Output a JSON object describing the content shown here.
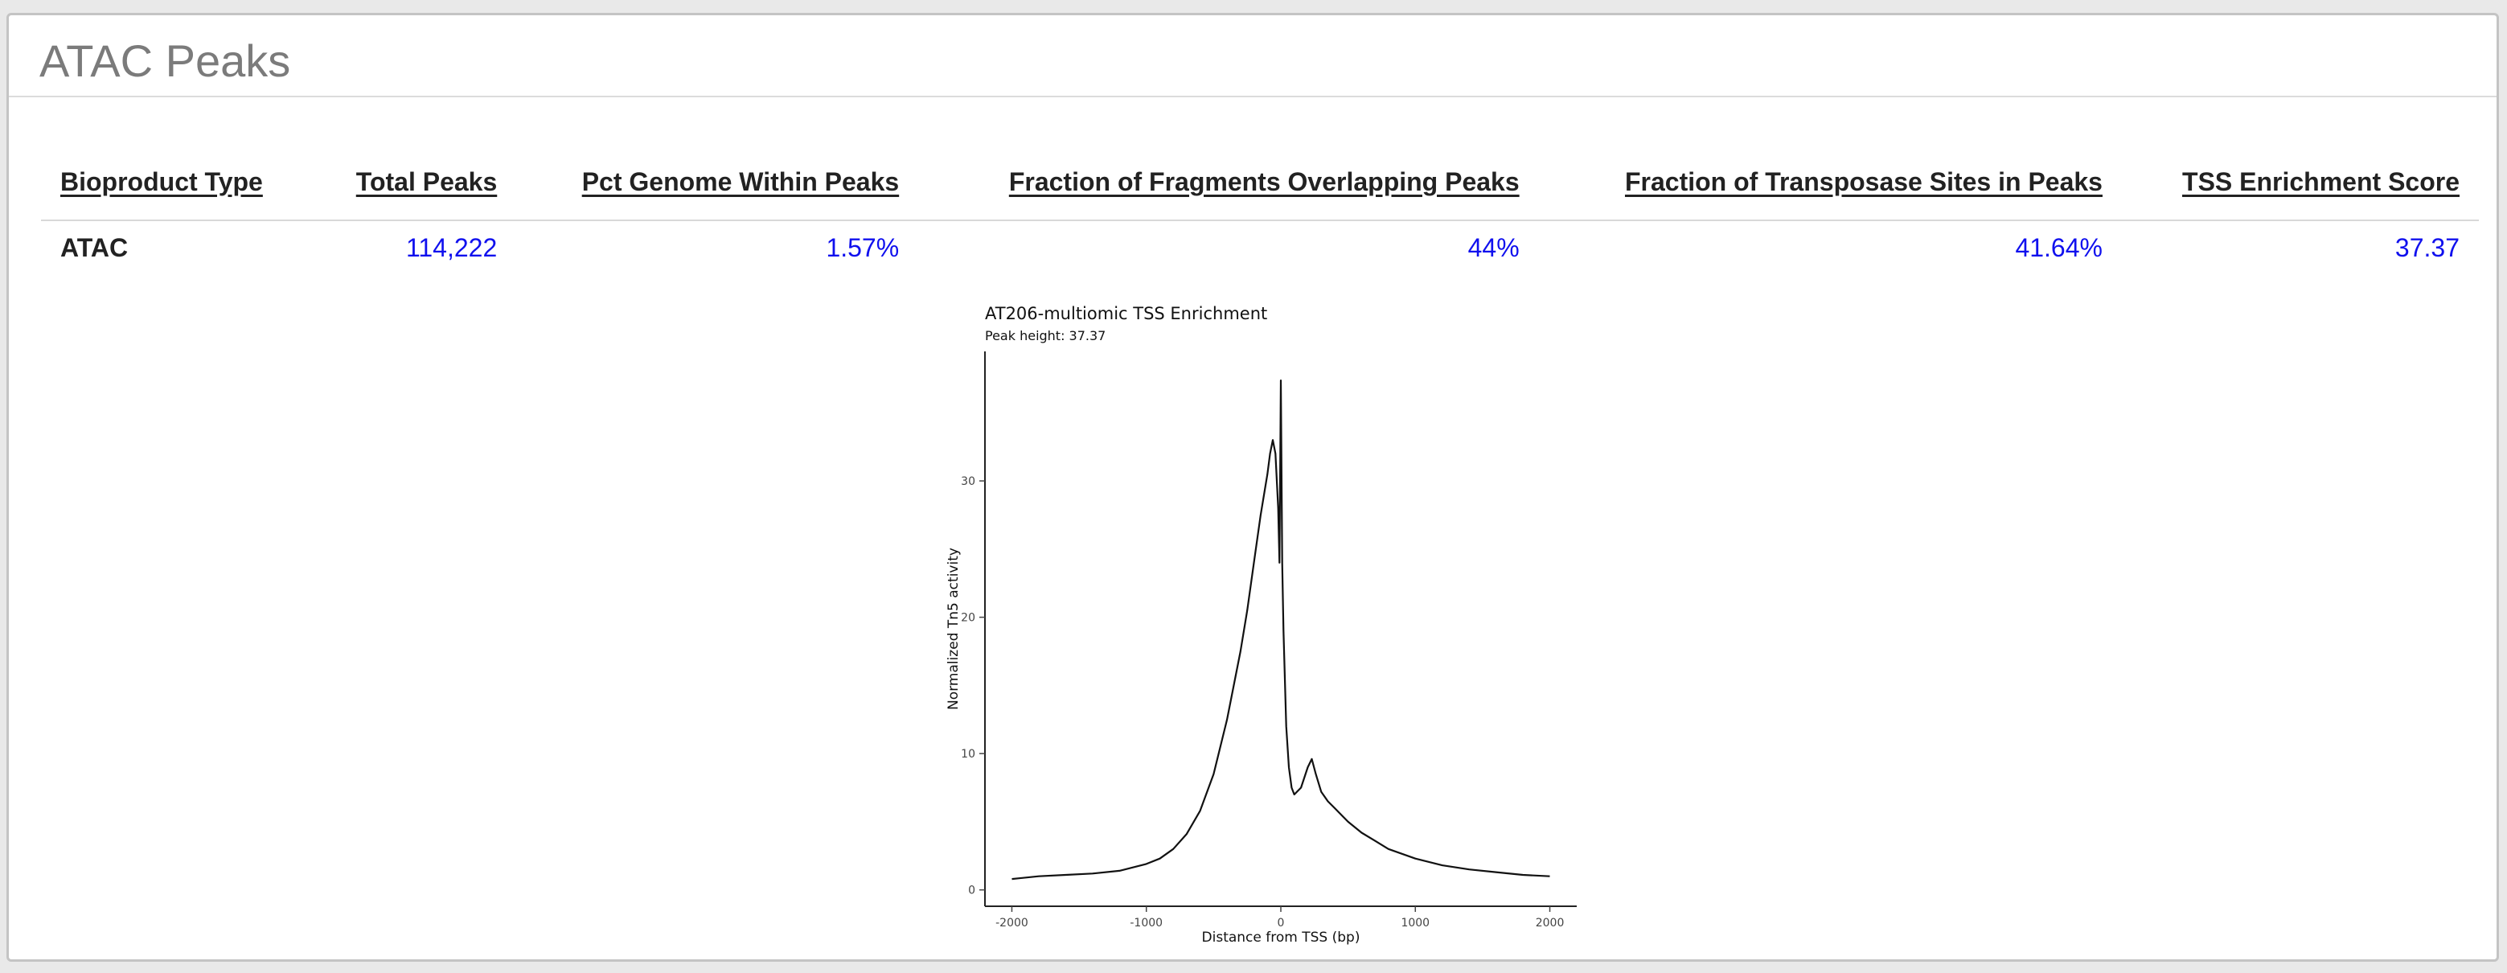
{
  "section": {
    "title": "ATAC Peaks"
  },
  "table": {
    "headers": [
      "Bioproduct Type",
      "Total Peaks",
      "Pct Genome Within Peaks",
      "Fraction of Fragments Overlapping Peaks",
      "Fraction of Transposase Sites in Peaks",
      "TSS Enrichment Score"
    ],
    "rows": [
      [
        "ATAC",
        "114,222",
        "1.57%",
        "44%",
        "41.64%",
        "37.37"
      ]
    ]
  },
  "colors": {
    "value_text": "#1010ee",
    "title_text": "#7b7b7b",
    "header_text": "#222222"
  },
  "chart_data": {
    "type": "line",
    "title": "AT206-multiomic TSS Enrichment",
    "subtitle": "Peak height: 37.37",
    "xlabel": "Distance from TSS (bp)",
    "ylabel": "Normalized Tn5 activity",
    "xlim": [
      -2200,
      2200
    ],
    "ylim": [
      -1.2,
      39.5
    ],
    "x_ticks": [
      -2000,
      -1000,
      0,
      1000,
      2000
    ],
    "x_tick_labels": [
      "-2000",
      "-1000",
      "0",
      "1000",
      "2000"
    ],
    "y_ticks": [
      0,
      10,
      20,
      30
    ],
    "y_tick_labels": [
      "0",
      "10",
      "20",
      "30"
    ],
    "grid": false,
    "series": [
      {
        "x": [
          -2000,
          -1800,
          -1600,
          -1400,
          -1200,
          -1000,
          -900,
          -800,
          -700,
          -600,
          -500,
          -400,
          -300,
          -250,
          -200,
          -150,
          -100,
          -80,
          -60,
          -40,
          -20,
          -10,
          0,
          10,
          20,
          40,
          60,
          80,
          100,
          150,
          200,
          230,
          260,
          300,
          350,
          400,
          500,
          600,
          700,
          800,
          1000,
          1200,
          1400,
          1600,
          1800,
          2000
        ],
        "y": [
          0.8,
          1.0,
          1.1,
          1.2,
          1.4,
          1.9,
          2.3,
          3.0,
          4.1,
          5.8,
          8.5,
          12.5,
          17.5,
          20.5,
          24.0,
          27.5,
          30.5,
          32.0,
          33.0,
          32.0,
          28.0,
          24.0,
          37.37,
          24.0,
          19.0,
          12.0,
          9.0,
          7.5,
          7.0,
          7.5,
          9.0,
          9.6,
          8.5,
          7.2,
          6.5,
          6.0,
          5.0,
          4.2,
          3.6,
          3.0,
          2.3,
          1.8,
          1.5,
          1.3,
          1.1,
          1.0
        ]
      }
    ]
  }
}
